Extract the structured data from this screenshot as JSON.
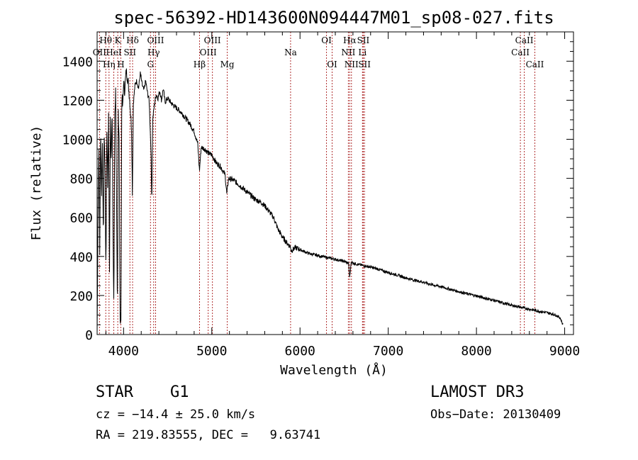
{
  "chart_data": {
    "type": "line",
    "title": "spec-56392-HD143600N094447M01_sp08-027.fits",
    "xlabel": "Wavelength (Å)",
    "ylabel": "Flux (relative)",
    "xlim": [
      3700,
      9100
    ],
    "ylim": [
      0,
      1550
    ],
    "x_ticks": [
      4000,
      5000,
      6000,
      7000,
      8000,
      9000
    ],
    "y_ticks": [
      0,
      200,
      400,
      600,
      800,
      1000,
      1200,
      1400
    ],
    "series": [
      {
        "name": "spectrum",
        "points": [
          [
            3700,
            0
          ],
          [
            3710,
            600
          ],
          [
            3720,
            980
          ],
          [
            3730,
            420
          ],
          [
            3740,
            1080
          ],
          [
            3750,
            700
          ],
          [
            3760,
            1000
          ],
          [
            3770,
            480
          ],
          [
            3780,
            1050
          ],
          [
            3790,
            820
          ],
          [
            3800,
            300
          ],
          [
            3810,
            1080
          ],
          [
            3820,
            760
          ],
          [
            3830,
            1150
          ],
          [
            3840,
            250
          ],
          [
            3850,
            1100
          ],
          [
            3860,
            900
          ],
          [
            3870,
            1180
          ],
          [
            3880,
            500
          ],
          [
            3890,
            150
          ],
          [
            3900,
            1120
          ],
          [
            3910,
            1250
          ],
          [
            3920,
            700
          ],
          [
            3930,
            80
          ],
          [
            3940,
            1150
          ],
          [
            3950,
            1000
          ],
          [
            3960,
            50
          ],
          [
            3970,
            100
          ],
          [
            3980,
            1250
          ],
          [
            3990,
            1150
          ],
          [
            4000,
            1300
          ],
          [
            4010,
            1240
          ],
          [
            4030,
            1350
          ],
          [
            4050,
            1300
          ],
          [
            4070,
            1200
          ],
          [
            4090,
            1060
          ],
          [
            4100,
            700
          ],
          [
            4110,
            1180
          ],
          [
            4130,
            1280
          ],
          [
            4150,
            1300
          ],
          [
            4170,
            1260
          ],
          [
            4190,
            1340
          ],
          [
            4210,
            1280
          ],
          [
            4230,
            1250
          ],
          [
            4250,
            1300
          ],
          [
            4270,
            1240
          ],
          [
            4290,
            1200
          ],
          [
            4310,
            950
          ],
          [
            4320,
            680
          ],
          [
            4330,
            1100
          ],
          [
            4350,
            1180
          ],
          [
            4370,
            1230
          ],
          [
            4390,
            1210
          ],
          [
            4410,
            1250
          ],
          [
            4430,
            1200
          ],
          [
            4450,
            1260
          ],
          [
            4470,
            1190
          ],
          [
            4500,
            1210
          ],
          [
            4550,
            1180
          ],
          [
            4600,
            1160
          ],
          [
            4650,
            1140
          ],
          [
            4700,
            1110
          ],
          [
            4750,
            1080
          ],
          [
            4800,
            1040
          ],
          [
            4840,
            980
          ],
          [
            4860,
            840
          ],
          [
            4880,
            960
          ],
          [
            4920,
            950
          ],
          [
            4960,
            930
          ],
          [
            5000,
            920
          ],
          [
            5050,
            880
          ],
          [
            5100,
            860
          ],
          [
            5150,
            820
          ],
          [
            5170,
            720
          ],
          [
            5190,
            800
          ],
          [
            5250,
            790
          ],
          [
            5300,
            770
          ],
          [
            5350,
            750
          ],
          [
            5400,
            730
          ],
          [
            5450,
            710
          ],
          [
            5500,
            690
          ],
          [
            5550,
            680
          ],
          [
            5600,
            660
          ],
          [
            5650,
            630
          ],
          [
            5700,
            600
          ],
          [
            5750,
            540
          ],
          [
            5800,
            500
          ],
          [
            5850,
            470
          ],
          [
            5890,
            450
          ],
          [
            5900,
            430
          ],
          [
            5950,
            445
          ],
          [
            6000,
            435
          ],
          [
            6050,
            425
          ],
          [
            6100,
            415
          ],
          [
            6150,
            410
          ],
          [
            6200,
            405
          ],
          [
            6250,
            400
          ],
          [
            6300,
            395
          ],
          [
            6350,
            390
          ],
          [
            6400,
            385
          ],
          [
            6450,
            380
          ],
          [
            6500,
            375
          ],
          [
            6550,
            365
          ],
          [
            6563,
            290
          ],
          [
            6580,
            370
          ],
          [
            6650,
            360
          ],
          [
            6700,
            355
          ],
          [
            6750,
            350
          ],
          [
            6800,
            345
          ],
          [
            6850,
            340
          ],
          [
            6900,
            333
          ],
          [
            6950,
            325
          ],
          [
            7000,
            318
          ],
          [
            7100,
            305
          ],
          [
            7200,
            290
          ],
          [
            7300,
            278
          ],
          [
            7400,
            268
          ],
          [
            7500,
            255
          ],
          [
            7600,
            245
          ],
          [
            7700,
            232
          ],
          [
            7800,
            220
          ],
          [
            7900,
            208
          ],
          [
            8000,
            198
          ],
          [
            8100,
            186
          ],
          [
            8200,
            175
          ],
          [
            8300,
            162
          ],
          [
            8400,
            150
          ],
          [
            8500,
            140
          ],
          [
            8600,
            130
          ],
          [
            8700,
            120
          ],
          [
            8800,
            112
          ],
          [
            8900,
            100
          ],
          [
            8950,
            85
          ],
          [
            8980,
            50
          ]
        ]
      }
    ],
    "lines": [
      {
        "label": "Hθ",
        "x": 3798,
        "row": 0
      },
      {
        "label": "OII",
        "x": 3727,
        "row": 1
      },
      {
        "label": "Hη",
        "x": 3835,
        "row": 2
      },
      {
        "label": "K",
        "x": 3934,
        "row": 0
      },
      {
        "label": "HeI",
        "x": 3889,
        "row": 1
      },
      {
        "label": "H",
        "x": 3969,
        "row": 2
      },
      {
        "label": "Hδ",
        "x": 4102,
        "row": 0
      },
      {
        "label": "SII",
        "x": 4072,
        "row": 1
      },
      {
        "label": "OIII",
        "x": 4363,
        "row": 0
      },
      {
        "label": "Hγ",
        "x": 4341,
        "row": 1
      },
      {
        "label": "G",
        "x": 4305,
        "row": 2
      },
      {
        "label": "Hβ",
        "x": 4861,
        "row": 2
      },
      {
        "label": "OIII",
        "x": 5007,
        "row": 0
      },
      {
        "label": "OIII",
        "x": 4959,
        "row": 1
      },
      {
        "label": "Mg",
        "x": 5175,
        "row": 2
      },
      {
        "label": "Na",
        "x": 5893,
        "row": 1
      },
      {
        "label": "OI",
        "x": 6300,
        "row": 0
      },
      {
        "label": "OI",
        "x": 6364,
        "row": 2
      },
      {
        "label": "Hα",
        "x": 6563,
        "row": 0
      },
      {
        "label": "NII",
        "x": 6548,
        "row": 1
      },
      {
        "label": "NII",
        "x": 6583,
        "row": 2
      },
      {
        "label": "SII",
        "x": 6717,
        "row": 0
      },
      {
        "label": "Li",
        "x": 6708,
        "row": 1
      },
      {
        "label": "SII",
        "x": 6731,
        "row": 2
      },
      {
        "label": "CaII",
        "x": 8542,
        "row": 0
      },
      {
        "label": "CaII",
        "x": 8498,
        "row": 1
      },
      {
        "label": "CaII",
        "x": 8662,
        "row": 2
      }
    ],
    "line_color": "#b03030"
  },
  "info": {
    "object_class": "STAR",
    "subclass": "G1",
    "survey": "LAMOST DR3",
    "redshift": "cz = −14.4 ± 25.0 km/s",
    "obs_date": "Obs−Date: 20130409",
    "coords": "RA = 219.83555, DEC =   9.63741"
  }
}
